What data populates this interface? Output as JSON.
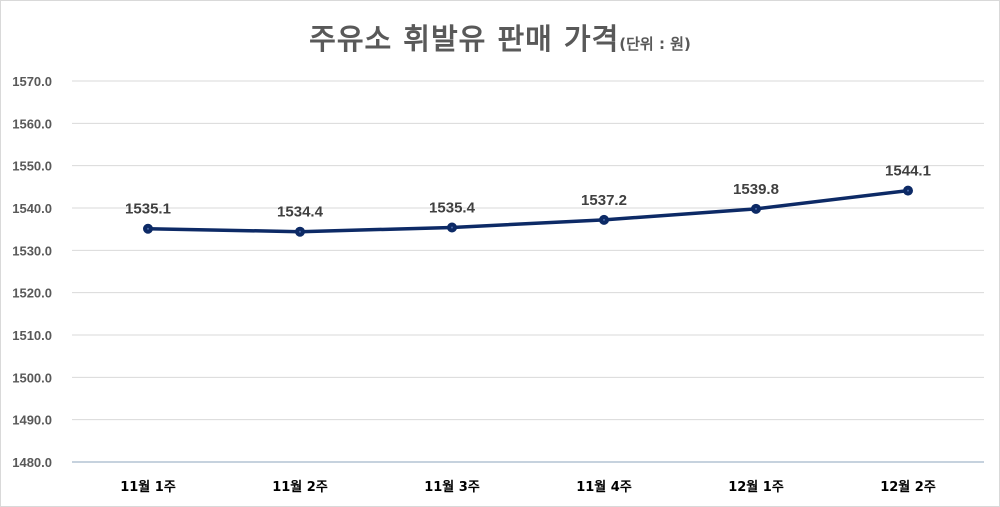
{
  "title": {
    "main": "주유소 휘발유 판매 가격",
    "unit": "(단위 : 원)"
  },
  "colors": {
    "line": "#0d2a66",
    "grid": "#d9d9d9",
    "axis": "#b4c3d3",
    "text": "#595959"
  },
  "chart_data": {
    "type": "line",
    "title": "주유소 휘발유 판매 가격(단위 : 원)",
    "xlabel": "",
    "ylabel": "",
    "categories": [
      "11월 1주",
      "11월 2주",
      "11월 3주",
      "11월 4주",
      "12월 1주",
      "12월 2주"
    ],
    "series": [
      {
        "name": "휘발유 판매 가격",
        "values": [
          1535.1,
          1534.4,
          1535.4,
          1537.2,
          1539.8,
          1544.1
        ]
      }
    ],
    "data_labels": [
      "1535.1",
      "1534.4",
      "1535.4",
      "1537.2",
      "1539.8",
      "1544.1"
    ],
    "ylim": [
      1480,
      1570
    ],
    "yticks": [
      "1570.0",
      "1560.0",
      "1550.0",
      "1540.0",
      "1530.0",
      "1520.0",
      "1510.0",
      "1500.0",
      "1490.0",
      "1480.0"
    ],
    "grid": true,
    "legend": "none"
  }
}
